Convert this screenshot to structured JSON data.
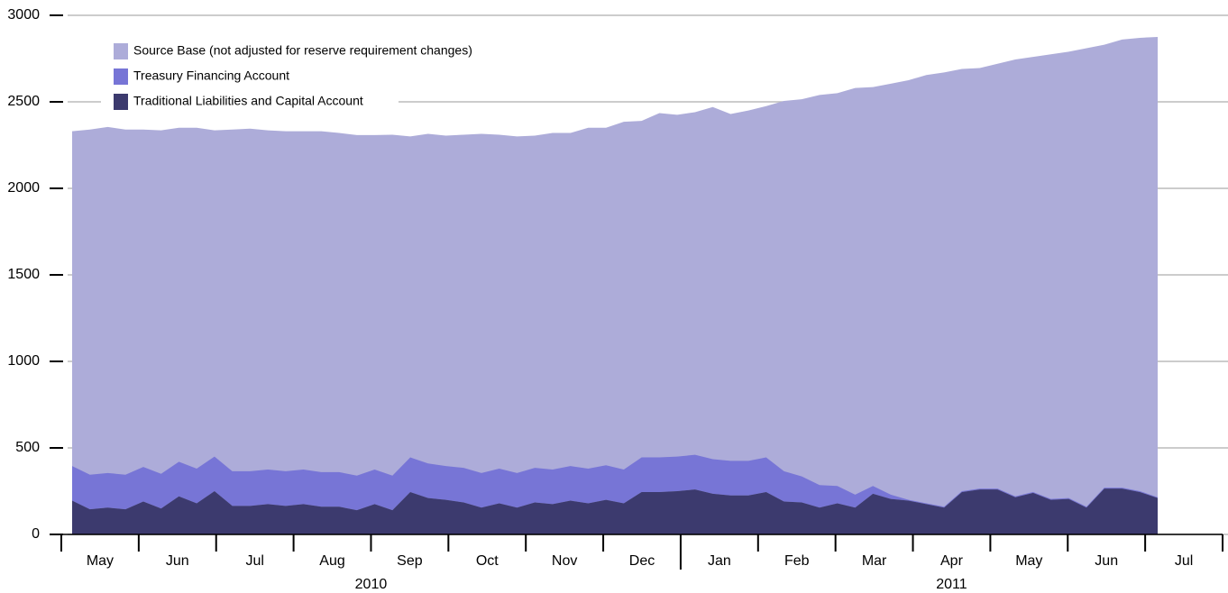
{
  "chart_data": {
    "type": "area",
    "categories": [
      null,
      null,
      null,
      null,
      null,
      null,
      null,
      null,
      null,
      null,
      null,
      null,
      null,
      null,
      null,
      null,
      null,
      null,
      null,
      null,
      null,
      null,
      null,
      null,
      null,
      null,
      null,
      null,
      null,
      null,
      null,
      null,
      null,
      null,
      null,
      null,
      null,
      null,
      null,
      null,
      null,
      null,
      null,
      null,
      null,
      null,
      null,
      null,
      null,
      null,
      null,
      null,
      null,
      null,
      null,
      null,
      null,
      null,
      null,
      null,
      null,
      null
    ],
    "months": [
      "May",
      "Jun",
      "Jul",
      "Aug",
      "Sep",
      "Oct",
      "Nov",
      "Dec",
      "Jan",
      "Feb",
      "Mar",
      "Apr",
      "May",
      "Jun",
      "Jul"
    ],
    "years": [
      "2010",
      "2011"
    ],
    "ylim": [
      0,
      3000
    ],
    "yticks": [
      0,
      500,
      1000,
      1500,
      2000,
      2500,
      3000
    ],
    "grid": true,
    "legend": "upper left",
    "series": [
      {
        "name": "Source Base (not adjusted for reserve requirement changes)",
        "color": "#adacd9",
        "stacked": false,
        "values": [
          2330,
          2340,
          2355,
          2340,
          2340,
          2335,
          2350,
          2350,
          2335,
          2340,
          2345,
          2335,
          2330,
          2330,
          2330,
          2320,
          2308,
          2308,
          2310,
          2300,
          2315,
          2305,
          2310,
          2315,
          2310,
          2300,
          2305,
          2320,
          2320,
          2350,
          2350,
          2385,
          2390,
          2435,
          2425,
          2440,
          2470,
          2430,
          2450,
          2475,
          2505,
          2515,
          2540,
          2550,
          2580,
          2585,
          2605,
          2625,
          2655,
          2670,
          2690,
          2695,
          2720,
          2745,
          2760,
          2775,
          2790,
          2810,
          2830,
          2860,
          2870,
          2875
        ]
      },
      {
        "name": "Treasury Financing Account",
        "color": "#7775d6",
        "stacked": true,
        "values": [
          200,
          200,
          200,
          200,
          200,
          200,
          200,
          200,
          200,
          200,
          200,
          200,
          200,
          200,
          200,
          200,
          200,
          200,
          200,
          200,
          200,
          195,
          200,
          200,
          200,
          200,
          200,
          200,
          200,
          200,
          200,
          195,
          200,
          200,
          200,
          200,
          200,
          200,
          200,
          200,
          175,
          150,
          130,
          100,
          75,
          45,
          25,
          5,
          5,
          5,
          5,
          5,
          5,
          5,
          5,
          5,
          5,
          5,
          5,
          5,
          5,
          5
        ]
      },
      {
        "name": "Traditional Liabilities and Capital Account",
        "color": "#3c3a6e",
        "stacked": true,
        "values": [
          195,
          145,
          155,
          145,
          190,
          150,
          220,
          180,
          250,
          165,
          165,
          175,
          165,
          175,
          160,
          160,
          140,
          175,
          140,
          245,
          210,
          200,
          185,
          155,
          180,
          155,
          185,
          175,
          195,
          180,
          200,
          180,
          245,
          245,
          250,
          260,
          235,
          225,
          225,
          245,
          190,
          185,
          155,
          180,
          155,
          235,
          205,
          195,
          175,
          155,
          245,
          260,
          260,
          215,
          240,
          200,
          205,
          155,
          265,
          265,
          245,
          210
        ]
      }
    ]
  }
}
